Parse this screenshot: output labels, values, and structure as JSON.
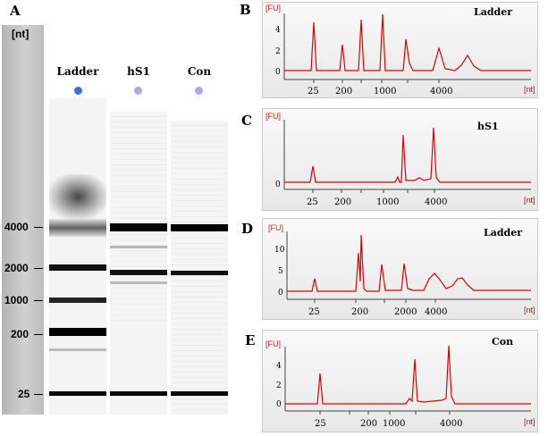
{
  "panelA": {
    "letter": "A",
    "axis_unit": "[nt]",
    "size_markers": [
      "4000",
      "2000",
      "1000",
      "200",
      "25"
    ],
    "lanes": [
      {
        "label": "Ladder",
        "dot_color": "#3a6fe0"
      },
      {
        "label": "hS1",
        "dot_color": "#a9a9ee"
      },
      {
        "label": "Con",
        "dot_color": "#a9a9ee"
      }
    ]
  },
  "electropherograms": [
    {
      "letter": "B",
      "title": "Ladder",
      "y_unit": "[FU]",
      "x_unit": "[nt]",
      "y_ticks": [
        "0",
        "2",
        "4"
      ],
      "x_ticks": [
        "25",
        "200",
        "1000",
        "4000"
      ]
    },
    {
      "letter": "C",
      "title": "hS1",
      "y_unit": "[FU]",
      "x_unit": "[nt]",
      "y_ticks": [
        "0"
      ],
      "x_ticks": [
        "25",
        "200",
        "1000",
        "4000"
      ]
    },
    {
      "letter": "D",
      "title": "Ladder",
      "y_unit": "[FU]",
      "x_unit": "[nt]",
      "y_ticks": [
        "0",
        "5",
        "10"
      ],
      "x_ticks": [
        "25",
        "200",
        "2000",
        "4000"
      ]
    },
    {
      "letter": "E",
      "title": "Con",
      "y_unit": "[FU]",
      "x_unit": "[nt]",
      "y_ticks": [
        "0",
        "2",
        "4"
      ],
      "x_ticks": [
        "25",
        "200",
        "1000",
        "4000"
      ]
    }
  ]
}
